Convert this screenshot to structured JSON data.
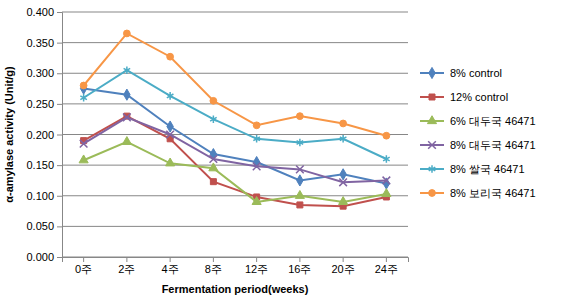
{
  "chart_data": {
    "type": "line",
    "x_label": "Fermentation period(weeks)",
    "y_label": "α-amylase activity (Unit/g)",
    "categories": [
      "0주",
      "2주",
      "4주",
      "8주",
      "12주",
      "16주",
      "20주",
      "24주"
    ],
    "ylim": [
      0,
      0.4
    ],
    "yticks": [
      {
        "value": 0,
        "label": "0.000"
      },
      {
        "value": 0.05,
        "label": "0.050"
      },
      {
        "value": 0.1,
        "label": "0.100"
      },
      {
        "value": 0.15,
        "label": "0.150"
      },
      {
        "value": 0.2,
        "label": "0.200"
      },
      {
        "value": 0.25,
        "label": "0.250"
      },
      {
        "value": 0.3,
        "label": "0.300"
      },
      {
        "value": 0.35,
        "label": "0.350"
      },
      {
        "value": 0.4,
        "label": "0.400"
      }
    ],
    "grid": true,
    "legend": "right",
    "series": [
      {
        "name": "8% control",
        "color": "#4f81bd",
        "marker": "diamond",
        "values": [
          0.275,
          0.265,
          0.213,
          0.168,
          0.155,
          0.125,
          0.135,
          0.12
        ]
      },
      {
        "name": "12% control",
        "color": "#c0504d",
        "marker": "square",
        "values": [
          0.19,
          0.23,
          0.193,
          0.123,
          0.098,
          0.085,
          0.083,
          0.098
        ]
      },
      {
        "name": "6% 대두국 46471",
        "color": "#9bbb59",
        "marker": "triangle",
        "values": [
          0.158,
          0.188,
          0.153,
          0.145,
          0.09,
          0.1,
          0.09,
          0.103
        ]
      },
      {
        "name": "8% 대두국 46471",
        "color": "#8064a2",
        "marker": "x",
        "values": [
          0.185,
          0.228,
          0.2,
          0.16,
          0.148,
          0.143,
          0.122,
          0.125
        ]
      },
      {
        "name": "8% 쌀국 46471",
        "color": "#4bacc6",
        "marker": "asterisk",
        "values": [
          0.26,
          0.305,
          0.263,
          0.225,
          0.193,
          0.187,
          0.193,
          0.16
        ]
      },
      {
        "name": "8% 보리국 46471",
        "color": "#f79646",
        "marker": "circle",
        "values": [
          0.28,
          0.365,
          0.327,
          0.255,
          0.215,
          0.23,
          0.218,
          0.198
        ]
      }
    ]
  }
}
